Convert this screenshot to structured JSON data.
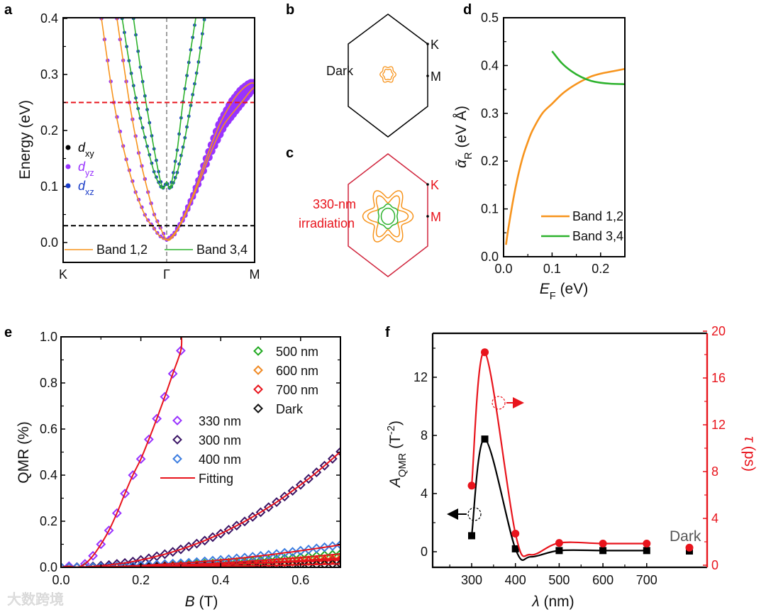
{
  "panel_labels": {
    "a": "a",
    "b": "b",
    "c": "c",
    "d": "d",
    "e": "e",
    "f": "f"
  },
  "watermark": "大数跨境",
  "colors": {
    "orange": "#f7941d",
    "green": "#2db22d",
    "red": "#e8141c",
    "purple": "#9933ff",
    "blue": "#1a3cc8",
    "gray": "#a0a0a0"
  },
  "chart_data": [
    {
      "id": "a",
      "type": "line",
      "title": "",
      "ylabel": "Energy (eV)",
      "ylim": [
        -0.035,
        0.4
      ],
      "y_ticks": [
        0,
        0.1,
        0.2,
        0.3,
        0.4
      ],
      "y_tick_labels": [
        "0.0",
        "0.1",
        "0.2",
        "0.3",
        "0.4"
      ],
      "x_labels": [
        "K",
        "Γ",
        "M"
      ],
      "x_note": "k normalized: -1 = K, 0 = Γ, 1 = M",
      "hlines": [
        {
          "y": 0.25,
          "color": "#e8141c"
        },
        {
          "y": 0.03,
          "color": "#000000"
        }
      ],
      "orbital_legend": [
        {
          "main": "d",
          "sub": "xy",
          "color": "#000000"
        },
        {
          "main": "d",
          "sub": "yz",
          "color": "#9933ff"
        },
        {
          "main": "d",
          "sub": "xz",
          "color": "#1a3cc8"
        }
      ],
      "band_legend": [
        {
          "label": "Band 1,2",
          "color": "#f7941d"
        },
        {
          "label": "Band 3,4",
          "color": "#2db22d"
        }
      ],
      "series": [
        {
          "name": "Band 1",
          "group": "Band 1,2",
          "orbital": "dyz",
          "points": [
            [
              -0.63,
              0.4
            ],
            [
              -0.51,
              0.25
            ],
            [
              -0.4,
              0.155
            ],
            [
              -0.3,
              0.09
            ],
            [
              -0.2,
              0.045
            ],
            [
              -0.14,
              0.03
            ],
            [
              -0.07,
              0.012
            ],
            [
              0,
              0.005
            ],
            [
              0.08,
              0.015
            ],
            [
              0.16,
              0.035
            ],
            [
              0.3,
              0.085
            ],
            [
              0.45,
              0.15
            ],
            [
              0.6,
              0.21
            ],
            [
              0.74,
              0.25
            ],
            [
              0.85,
              0.272
            ],
            [
              0.95,
              0.284
            ],
            [
              1,
              0.284
            ]
          ]
        },
        {
          "name": "Band 2",
          "group": "Band 1,2",
          "orbital": "dyz",
          "points": [
            [
              -0.48,
              0.4
            ],
            [
              -0.36,
              0.25
            ],
            [
              -0.27,
              0.16
            ],
            [
              -0.18,
              0.09
            ],
            [
              -0.12,
              0.05
            ],
            [
              -0.07,
              0.03
            ],
            [
              0,
              0.005
            ],
            [
              0.08,
              0.012
            ],
            [
              0.2,
              0.045
            ],
            [
              0.35,
              0.1
            ],
            [
              0.5,
              0.16
            ],
            [
              0.65,
              0.21
            ],
            [
              0.85,
              0.25
            ],
            [
              0.95,
              0.27
            ],
            [
              1,
              0.278
            ]
          ]
        },
        {
          "name": "Band 3",
          "group": "Band 3,4",
          "orbital": "dxz",
          "points": [
            [
              -0.43,
              0.4
            ],
            [
              -0.36,
              0.32
            ],
            [
              -0.29,
              0.25
            ],
            [
              -0.2,
              0.18
            ],
            [
              -0.12,
              0.125
            ],
            [
              -0.06,
              0.1
            ],
            [
              -0.03,
              0.097
            ],
            [
              0,
              0.108
            ],
            [
              0.03,
              0.097
            ],
            [
              0.06,
              0.1
            ],
            [
              0.12,
              0.125
            ],
            [
              0.2,
              0.18
            ],
            [
              0.28,
              0.25
            ],
            [
              0.36,
              0.32
            ],
            [
              0.43,
              0.4
            ]
          ]
        },
        {
          "name": "Band 4",
          "group": "Band 3,4",
          "orbital": "dxz",
          "points": [
            [
              -0.32,
              0.4
            ],
            [
              -0.26,
              0.32
            ],
            [
              -0.2,
              0.25
            ],
            [
              -0.12,
              0.165
            ],
            [
              -0.06,
              0.11
            ],
            [
              -0.03,
              0.097
            ],
            [
              0,
              0.108
            ],
            [
              0.03,
              0.097
            ],
            [
              0.06,
              0.11
            ],
            [
              0.12,
              0.165
            ],
            [
              0.185,
              0.25
            ],
            [
              0.26,
              0.33
            ],
            [
              0.33,
              0.4
            ]
          ]
        }
      ]
    },
    {
      "id": "b",
      "type": "diagram",
      "label": "Dark",
      "points": [
        "K",
        "M"
      ]
    },
    {
      "id": "c",
      "type": "diagram",
      "label_lines": [
        "330-nm",
        "irradiation"
      ],
      "points": [
        "K",
        "M"
      ]
    },
    {
      "id": "d",
      "type": "line",
      "xlabel": {
        "main": "E",
        "sub": "F",
        "rest": " (eV)"
      },
      "ylabel": {
        "main": "ᾱ",
        "sub": "R",
        "rest": " (eV Å)"
      },
      "xlim": [
        0,
        0.25
      ],
      "ylim": [
        0,
        0.5
      ],
      "x_ticks": [
        0,
        0.1,
        0.2
      ],
      "x_tick_labels": [
        "0.0",
        "0.1",
        "0.2"
      ],
      "y_ticks": [
        0,
        0.1,
        0.2,
        0.3,
        0.4,
        0.5
      ],
      "y_tick_labels": [
        "0.0",
        "0.1",
        "0.2",
        "0.3",
        "0.4",
        "0.5"
      ],
      "legend": "bottom-right",
      "series": [
        {
          "name": "Band 1,2",
          "color": "#f7941d",
          "points": [
            [
              0.005,
              0.025
            ],
            [
              0.01,
              0.06
            ],
            [
              0.02,
              0.12
            ],
            [
              0.03,
              0.17
            ],
            [
              0.04,
              0.21
            ],
            [
              0.05,
              0.24
            ],
            [
              0.06,
              0.265
            ],
            [
              0.08,
              0.3
            ],
            [
              0.1,
              0.32
            ],
            [
              0.12,
              0.34
            ],
            [
              0.14,
              0.355
            ],
            [
              0.16,
              0.367
            ],
            [
              0.18,
              0.377
            ],
            [
              0.2,
              0.383
            ],
            [
              0.22,
              0.387
            ],
            [
              0.24,
              0.391
            ],
            [
              0.25,
              0.393
            ]
          ]
        },
        {
          "name": "Band 3,4",
          "color": "#2db22d",
          "points": [
            [
              0.1,
              0.43
            ],
            [
              0.12,
              0.405
            ],
            [
              0.14,
              0.388
            ],
            [
              0.16,
              0.376
            ],
            [
              0.18,
              0.368
            ],
            [
              0.2,
              0.364
            ],
            [
              0.22,
              0.362
            ],
            [
              0.25,
              0.361
            ]
          ]
        }
      ]
    },
    {
      "id": "e",
      "type": "scatter",
      "xlabel": {
        "main": "B",
        "rest": " (T)"
      },
      "ylabel": "QMR (%)",
      "xlim": [
        0,
        0.7
      ],
      "ylim": [
        0,
        1.0
      ],
      "x_ticks": [
        0,
        0.2,
        0.4,
        0.6
      ],
      "x_tick_labels": [
        "0.0",
        "0.2",
        "0.4",
        "0.6"
      ],
      "y_ticks": [
        0,
        0.2,
        0.4,
        0.6,
        0.8,
        1.0
      ],
      "y_tick_labels": [
        "0.0",
        "0.2",
        "0.4",
        "0.6",
        "0.8",
        "1.0"
      ],
      "fit_label": "Fitting",
      "fit_color": "#e8141c",
      "x": [
        0,
        0.02,
        0.04,
        0.06,
        0.08,
        0.1,
        0.12,
        0.14,
        0.16,
        0.18,
        0.2,
        0.22,
        0.24,
        0.26,
        0.28,
        0.3,
        0.32,
        0.34,
        0.36,
        0.38,
        0.4,
        0.42,
        0.44,
        0.46,
        0.48,
        0.5,
        0.52,
        0.54,
        0.56,
        0.58,
        0.6,
        0.62,
        0.64,
        0.66,
        0.68,
        0.7
      ],
      "series": [
        {
          "name": "500 nm",
          "color": "#22aa22",
          "legend_group": "right",
          "values": [
            0,
            0,
            0,
            0,
            0.001,
            0.001,
            0.002,
            0.002,
            0.003,
            0.004,
            0.005,
            0.006,
            0.007,
            0.008,
            0.009,
            0.011,
            0.012,
            0.014,
            0.016,
            0.017,
            0.019,
            0.021,
            0.023,
            0.025,
            0.028,
            0.03,
            0.032,
            0.035,
            0.038,
            0.04,
            0.043,
            0.046,
            0.049,
            0.052,
            0.055,
            0.059
          ]
        },
        {
          "name": "600 nm",
          "color": "#f08a24",
          "legend_group": "right",
          "values": [
            0,
            0,
            0,
            0,
            0.001,
            0.001,
            0.001,
            0.002,
            0.002,
            0.003,
            0.003,
            0.004,
            0.005,
            0.005,
            0.006,
            0.007,
            0.008,
            0.009,
            0.01,
            0.012,
            0.013,
            0.014,
            0.015,
            0.017,
            0.018,
            0.02,
            0.022,
            0.023,
            0.025,
            0.027,
            0.029,
            0.031,
            0.033,
            0.035,
            0.037,
            0.039
          ]
        },
        {
          "name": "700 nm",
          "color": "#e8141c",
          "legend_group": "right",
          "values": [
            0,
            0,
            0,
            0,
            0,
            0.001,
            0.001,
            0.001,
            0.002,
            0.002,
            0.003,
            0.003,
            0.004,
            0.005,
            0.005,
            0.006,
            0.007,
            0.008,
            0.009,
            0.01,
            0.011,
            0.012,
            0.014,
            0.015,
            0.016,
            0.018,
            0.019,
            0.02,
            0.022,
            0.024,
            0.025,
            0.027,
            0.029,
            0.03,
            0.032,
            0.034
          ]
        },
        {
          "name": "Dark",
          "color": "#111111",
          "legend_group": "right",
          "values": [
            0,
            0,
            0,
            0,
            0,
            0,
            0,
            0.001,
            0.001,
            0.001,
            0.001,
            0.001,
            0.002,
            0.002,
            0.002,
            0.003,
            0.003,
            0.003,
            0.004,
            0.004,
            0.005,
            0.005,
            0.006,
            0.006,
            0.007,
            0.008,
            0.008,
            0.009,
            0.009,
            0.01,
            0.011,
            0.012,
            0.012,
            0.013,
            0.014,
            0.015
          ]
        },
        {
          "name": "330 nm",
          "color": "#9933ff",
          "legend_group": "left",
          "values": [
            0,
            0.005,
            0,
            0.015,
            0.05,
            0.1,
            0.16,
            0.235,
            0.32,
            0.4,
            0.47,
            0.555,
            0.645,
            0.74,
            0.84,
            0.94
          ],
          "fit_end": [
            0.302,
            1.0
          ]
        },
        {
          "name": "300 nm",
          "color": "#3b1566",
          "legend_group": "left",
          "values": [
            0,
            0,
            0.001,
            0.002,
            0.004,
            0.007,
            0.01,
            0.015,
            0.019,
            0.025,
            0.032,
            0.039,
            0.048,
            0.057,
            0.067,
            0.078,
            0.09,
            0.103,
            0.116,
            0.131,
            0.146,
            0.163,
            0.181,
            0.199,
            0.219,
            0.239,
            0.261,
            0.283,
            0.307,
            0.332,
            0.358,
            0.384,
            0.412,
            0.441,
            0.471,
            0.502
          ]
        },
        {
          "name": "400 nm",
          "color": "#3c7de0",
          "legend_group": "left",
          "values": [
            0,
            0,
            0,
            0.001,
            0.001,
            0.002,
            0.003,
            0.004,
            0.005,
            0.006,
            0.008,
            0.01,
            0.012,
            0.014,
            0.016,
            0.018,
            0.02,
            0.023,
            0.026,
            0.029,
            0.032,
            0.035,
            0.039,
            0.042,
            0.046,
            0.05,
            0.054,
            0.058,
            0.063,
            0.067,
            0.072,
            0.077,
            0.082,
            0.087,
            0.092,
            0.098
          ]
        }
      ]
    },
    {
      "id": "f",
      "type": "line",
      "xlabel": {
        "main": "λ",
        "rest": " (nm)"
      },
      "ylabel_left": {
        "main": "A",
        "sub": "QMR",
        "rest": " (T",
        "sup": "-2",
        "end": ")"
      },
      "ylabel_right": {
        "main": "τ",
        "rest": " (ps)"
      },
      "xlim": [
        211,
        838
      ],
      "ylim_left": [
        -1.07,
        15
      ],
      "ylim_right": [
        0,
        20
      ],
      "x_ticks": [
        300,
        400,
        500,
        600,
        700
      ],
      "x_tick_labels": [
        "300",
        "400",
        "500",
        "600",
        "700"
      ],
      "y_ticks_left": [
        0,
        4,
        8,
        12
      ],
      "y_tick_labels_left": [
        "0",
        "4",
        "8",
        "12"
      ],
      "y_ticks_right": [
        0,
        4,
        8,
        12,
        16,
        20
      ],
      "y_tick_labels_right": [
        "0",
        "4",
        "8",
        "12",
        "16",
        "20"
      ],
      "dark_label": "Dark",
      "categories": [
        300,
        330,
        400,
        500,
        600,
        700,
        "Dark"
      ],
      "series": [
        {
          "name": "A_QMR",
          "axis": "left",
          "color": "#000000",
          "marker": "square",
          "values": [
            1.1,
            7.75,
            0.2,
            0.08,
            0.08,
            0.08,
            0.05
          ]
        },
        {
          "name": "tau",
          "axis": "right",
          "color": "#e8141c",
          "marker": "circle",
          "values": [
            6.8,
            18.2,
            2.7,
            1.9,
            1.85,
            1.85,
            1.5
          ]
        }
      ]
    }
  ]
}
